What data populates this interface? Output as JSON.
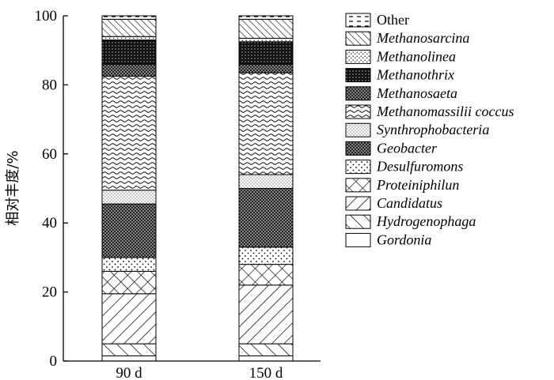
{
  "chart_data": {
    "type": "bar",
    "stacked": true,
    "title": "",
    "ylabel": "相对丰度/%",
    "ylim": [
      0,
      100
    ],
    "yticks": [
      0,
      20,
      40,
      60,
      80,
      100
    ],
    "categories": [
      "90 d",
      "150 d"
    ],
    "legend_position": "right",
    "series": [
      {
        "name": "Gordonia",
        "italic": true,
        "pattern": "blank",
        "values": [
          1.5,
          1.5
        ]
      },
      {
        "name": "Hydrogenophaga",
        "italic": true,
        "pattern": "diag-sparse",
        "values": [
          3.5,
          3.5
        ]
      },
      {
        "name": "Candidatus",
        "italic": true,
        "pattern": "back-diag",
        "values": [
          14.5,
          17
        ]
      },
      {
        "name": "Proteiniphilun",
        "italic": true,
        "pattern": "crosshatch",
        "values": [
          6.5,
          6
        ]
      },
      {
        "name": "Desulfuromons",
        "italic": true,
        "pattern": "sparse-dots",
        "values": [
          4,
          5
        ]
      },
      {
        "name": "Geobacter",
        "italic": true,
        "pattern": "dense-dots",
        "values": [
          15.5,
          17
        ]
      },
      {
        "name": "Synthrophobacteria",
        "italic": true,
        "pattern": "fine-dots",
        "values": [
          4,
          4
        ]
      },
      {
        "name": "Methanomassilii coccus",
        "italic": true,
        "pattern": "waves",
        "values": [
          33,
          29.5
        ]
      },
      {
        "name": "Methanosaeta",
        "italic": true,
        "pattern": "dense-dots",
        "values": [
          3.5,
          2.5
        ]
      },
      {
        "name": "Methanothrix",
        "italic": true,
        "pattern": "dark",
        "values": [
          7,
          6.5
        ]
      },
      {
        "name": "Methanolinea",
        "italic": true,
        "pattern": "stipple",
        "values": [
          1,
          1
        ]
      },
      {
        "name": "Methanosarcina",
        "italic": true,
        "pattern": "diag-dense",
        "values": [
          5,
          5.5
        ]
      },
      {
        "name": "Other",
        "italic": false,
        "pattern": "dash-box",
        "values": [
          1,
          1
        ]
      }
    ]
  }
}
